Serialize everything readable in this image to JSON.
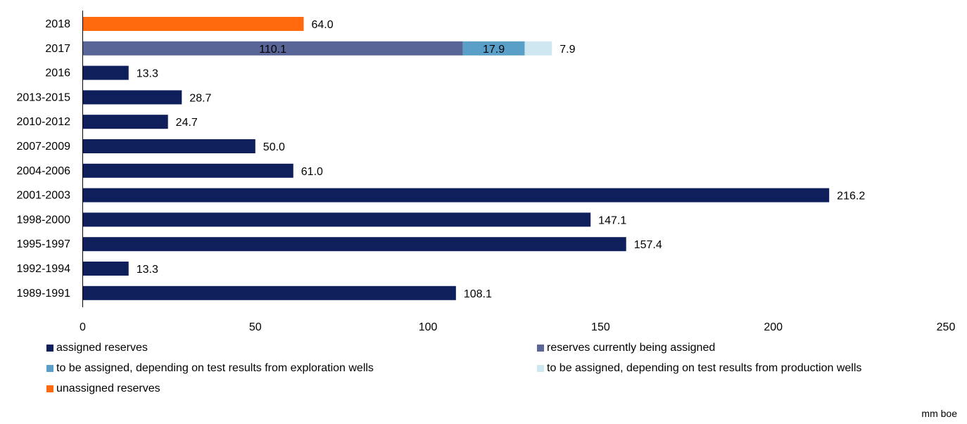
{
  "chart_data": {
    "type": "bar",
    "orientation": "horizontal",
    "stacked": true,
    "categories": [
      "2018",
      "2017",
      "2016",
      "2013-2015",
      "2010-2012",
      "2007-2009",
      "2004-2006",
      "2001-2003",
      "1998-2000",
      "1995-1997",
      "1992-1994",
      "1989-1991"
    ],
    "series": [
      {
        "name": "assigned reserves",
        "color": "#0f1f5c",
        "values": [
          0,
          0,
          13.3,
          28.7,
          24.7,
          50.0,
          61.0,
          216.2,
          147.1,
          157.4,
          13.3,
          108.1
        ],
        "labels": [
          "",
          "",
          "13.3",
          "28.7",
          "24.7",
          "50.0",
          "61.0",
          "216.2",
          "147.1",
          "157.4",
          "13.3",
          "108.1"
        ]
      },
      {
        "name": "reserves currently being assigned",
        "color": "#5a6597",
        "values": [
          0,
          110.1,
          0,
          0,
          0,
          0,
          0,
          0,
          0,
          0,
          0,
          0
        ],
        "labels": [
          "",
          "110.1",
          "",
          "",
          "",
          "",
          "",
          "",
          "",
          "",
          "",
          ""
        ]
      },
      {
        "name": "to be assigned, depending on test results from exploration wells",
        "color": "#5a9fc8",
        "values": [
          0,
          17.9,
          0,
          0,
          0,
          0,
          0,
          0,
          0,
          0,
          0,
          0
        ],
        "labels": [
          "",
          "17.9",
          "",
          "",
          "",
          "",
          "",
          "",
          "",
          "",
          "",
          ""
        ]
      },
      {
        "name": "to be assigned, depending on test results from production wells",
        "color": "#cfe7f1",
        "values": [
          0,
          7.9,
          0,
          0,
          0,
          0,
          0,
          0,
          0,
          0,
          0,
          0
        ],
        "labels": [
          "",
          "7.9",
          "",
          "",
          "",
          "",
          "",
          "",
          "",
          "",
          "",
          ""
        ]
      },
      {
        "name": "unassigned reserves",
        "color": "#ff6a0e",
        "values": [
          64.0,
          0,
          0,
          0,
          0,
          0,
          0,
          0,
          0,
          0,
          0,
          0
        ],
        "labels": [
          "64.0",
          "",
          "",
          "",
          "",
          "",
          "",
          "",
          "",
          "",
          "",
          ""
        ]
      }
    ],
    "xlim": [
      0,
      250
    ],
    "xticks": [
      "0",
      "50",
      "100",
      "150",
      "200",
      "250"
    ],
    "unit": "mm boe",
    "legend_position": "bottom"
  }
}
